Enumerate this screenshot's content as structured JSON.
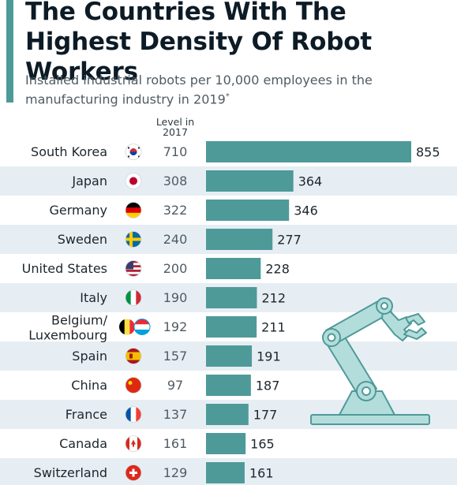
{
  "title": "The Countries With The Highest Density Of Robot Workers",
  "subtitle": "Installed industrial robots per 10,000 employees in the manufacturing industry in 2019",
  "subtitle_mark": "*",
  "column_header": [
    "Level in",
    "2017"
  ],
  "colors": {
    "bar": "#4e9a99",
    "stripe": "#e6eef4",
    "accent": "#4e9a99",
    "robot_fill": "#b3dddb",
    "robot_stroke": "#4e9a99"
  },
  "chart_data": {
    "type": "bar",
    "orientation": "horizontal",
    "title": "The Countries With The Highest Density Of Robot Workers",
    "categories": [
      "South Korea",
      "Japan",
      "Germany",
      "Sweden",
      "United States",
      "Italy",
      "Belgium/\nLuxembourg",
      "Spain",
      "China",
      "France",
      "Canada",
      "Switzerland"
    ],
    "values": [
      855,
      364,
      346,
      277,
      228,
      212,
      211,
      191,
      187,
      177,
      165,
      161
    ],
    "level_2017": [
      710,
      308,
      322,
      240,
      200,
      190,
      192,
      157,
      97,
      137,
      161,
      129
    ],
    "flags": [
      "south-korea-flag",
      "japan-flag",
      "germany-flag",
      "sweden-flag",
      "united-states-flag",
      "italy-flag",
      "belgium-luxembourg-flag",
      "spain-flag",
      "china-flag",
      "france-flag",
      "canada-flag",
      "switzerland-flag"
    ],
    "xlim": [
      0,
      855
    ],
    "grid": false,
    "legend": "none"
  }
}
